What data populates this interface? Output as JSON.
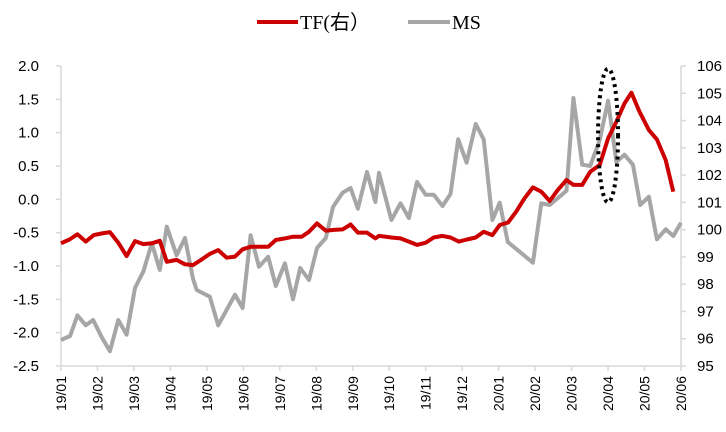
{
  "chart_data": {
    "type": "line",
    "title": "",
    "xlabel": "",
    "ylabel": "",
    "legend_position": "top",
    "grid": false,
    "x_unit": "months since 19/01",
    "categories": [
      "19/01",
      "19/02",
      "19/03",
      "19/04",
      "19/05",
      "19/06",
      "19/07",
      "19/08",
      "19/09",
      "19/10",
      "19/11",
      "19/12",
      "20/01",
      "20/02",
      "20/03",
      "20/04",
      "20/05",
      "20/06"
    ],
    "left_axis": {
      "ylim": [
        -2.5,
        2.0
      ],
      "ticks": [
        "2.0",
        "1.5",
        "1.0",
        "0.5",
        "0.0",
        "-0.5",
        "-1.0",
        "-1.5",
        "-2.0",
        "-2.5"
      ],
      "tick_values": [
        2.0,
        1.5,
        1.0,
        0.5,
        0.0,
        -0.5,
        -1.0,
        -1.5,
        -2.0,
        -2.5
      ]
    },
    "right_axis": {
      "ylim": [
        95,
        106
      ],
      "ticks": [
        "106",
        "105",
        "104",
        "103",
        "102",
        "101",
        "100",
        "99",
        "98",
        "97",
        "96",
        "95"
      ],
      "tick_values": [
        106,
        105,
        104,
        103,
        102,
        101,
        100,
        99,
        98,
        97,
        96,
        95
      ]
    },
    "series": [
      {
        "name": "TF(右）",
        "axis": "right",
        "color": "#cc0000",
        "x": [
          0,
          0.23,
          0.45,
          0.68,
          0.9,
          1.11,
          1.34,
          1.57,
          1.8,
          2.03,
          2.26,
          2.49,
          2.71,
          2.9,
          3.17,
          3.4,
          3.62,
          3.86,
          4.08,
          4.31,
          4.54,
          4.77,
          4.98,
          5.2,
          5.43,
          5.68,
          5.89,
          6.14,
          6.36,
          6.6,
          6.8,
          7.02,
          7.26,
          7.48,
          7.72,
          7.94,
          8.14,
          8.39,
          8.62,
          8.72,
          9.06,
          9.31,
          9.54,
          9.76,
          10.0,
          10.22,
          10.46,
          10.68,
          10.91,
          11.13,
          11.37,
          11.59,
          11.83,
          12.03,
          12.26,
          12.48,
          12.71,
          12.94,
          13.17,
          13.4,
          13.62,
          13.86,
          14.05,
          14.29,
          14.51,
          14.77,
          15.0,
          15.23,
          15.45,
          15.64,
          15.86,
          16.12,
          16.34,
          16.58,
          16.79
        ],
        "values": [
          99.5,
          99.64,
          99.83,
          99.56,
          99.8,
          99.86,
          99.91,
          99.52,
          99.03,
          99.58,
          99.47,
          99.5,
          99.59,
          98.82,
          98.89,
          98.73,
          98.7,
          98.91,
          99.11,
          99.25,
          98.97,
          99.01,
          99.28,
          99.37,
          99.37,
          99.37,
          99.62,
          99.68,
          99.74,
          99.74,
          99.92,
          100.23,
          99.96,
          99.99,
          100.01,
          100.19,
          99.89,
          99.89,
          99.68,
          99.77,
          99.71,
          99.68,
          99.56,
          99.44,
          99.52,
          99.71,
          99.77,
          99.71,
          99.56,
          99.64,
          99.71,
          99.92,
          99.8,
          100.17,
          100.26,
          100.66,
          101.15,
          101.55,
          101.39,
          101.05,
          101.45,
          101.82,
          101.64,
          101.64,
          102.12,
          102.37,
          103.35,
          103.96,
          104.63,
          105.02,
          104.33,
          103.65,
          103.31,
          102.55,
          101.39
        ]
      },
      {
        "name": "MS",
        "axis": "left",
        "color": "#a6a6a6",
        "x": [
          0,
          0.25,
          0.45,
          0.68,
          0.88,
          1.11,
          1.34,
          1.57,
          1.8,
          2.03,
          2.26,
          2.49,
          2.71,
          2.9,
          3.17,
          3.4,
          3.62,
          3.72,
          4.08,
          4.31,
          4.54,
          4.77,
          4.98,
          5.2,
          5.43,
          5.68,
          5.89,
          6.14,
          6.36,
          6.56,
          6.8,
          7.02,
          7.26,
          7.46,
          7.72,
          7.94,
          8.14,
          8.39,
          8.62,
          8.72,
          9.06,
          9.31,
          9.54,
          9.76,
          10.0,
          10.22,
          10.46,
          10.68,
          10.89,
          11.12,
          11.37,
          11.59,
          11.83,
          12.03,
          12.25,
          12.94,
          13.17,
          13.4,
          13.86,
          14.05,
          14.29,
          14.51,
          14.77,
          15.0,
          15.23,
          15.45,
          15.68,
          15.88,
          16.12,
          16.34,
          16.58,
          16.79,
          17.0
        ],
        "values": [
          -2.11,
          -2.05,
          -1.74,
          -1.89,
          -1.81,
          -2.06,
          -2.28,
          -1.81,
          -2.03,
          -1.33,
          -1.08,
          -0.66,
          -1.06,
          -0.41,
          -0.84,
          -0.58,
          -1.19,
          -1.36,
          -1.46,
          -1.89,
          -1.66,
          -1.43,
          -1.63,
          -0.54,
          -1.01,
          -0.86,
          -1.3,
          -0.96,
          -1.5,
          -1.03,
          -1.21,
          -0.73,
          -0.58,
          -0.11,
          0.1,
          0.17,
          -0.14,
          0.41,
          -0.04,
          0.4,
          -0.31,
          -0.06,
          -0.28,
          0.26,
          0.07,
          0.07,
          -0.1,
          0.08,
          0.9,
          0.55,
          1.13,
          0.9,
          -0.31,
          -0.05,
          -0.64,
          -0.95,
          -0.06,
          -0.085,
          0.13,
          1.52,
          0.52,
          0.5,
          0.89,
          1.48,
          0.56,
          0.67,
          0.52,
          -0.085,
          0.04,
          -0.6,
          -0.45,
          -0.55,
          -0.35
        ]
      }
    ],
    "annotation": {
      "shape": "dotted-ellipse",
      "x_month": 15.0,
      "right_axis_range": [
        101.0,
        105.9
      ]
    }
  }
}
